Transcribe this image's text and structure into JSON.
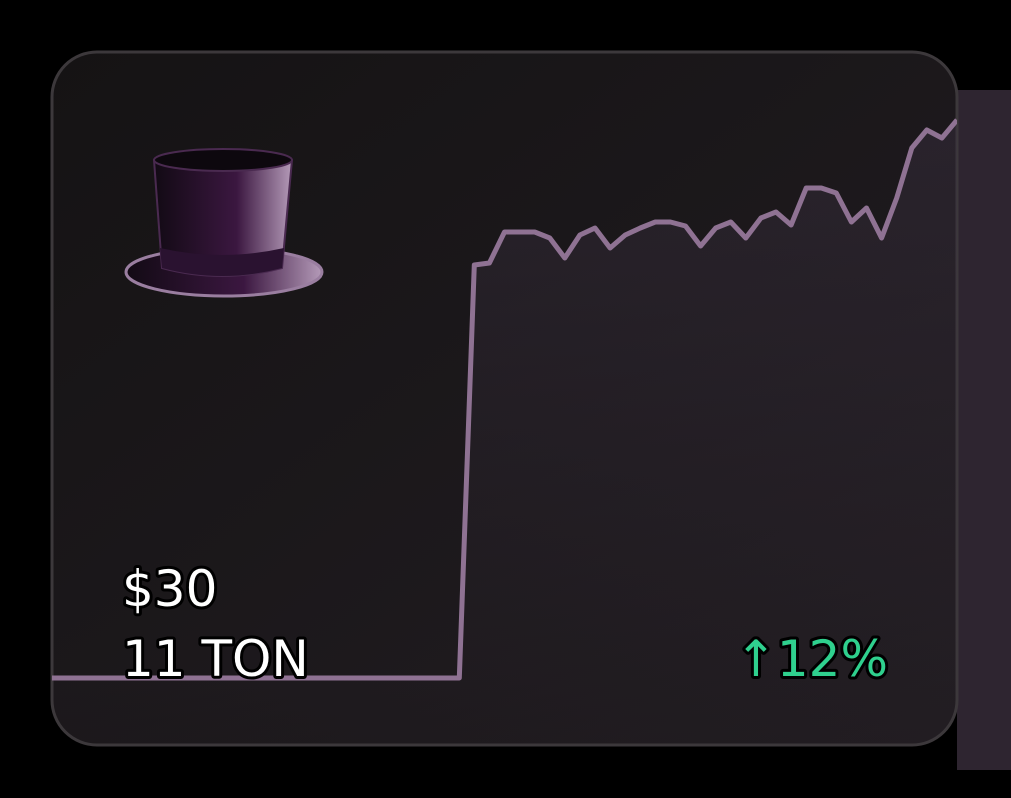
{
  "price": "$30",
  "amount": "11 TON",
  "change": "↑12%",
  "chart_data": {
    "type": "line",
    "color": "#8f7293",
    "values": [
      0,
      0,
      0,
      0,
      0,
      0,
      0,
      0,
      0,
      0,
      0,
      0,
      0,
      0,
      0,
      0,
      0,
      0,
      0,
      0,
      0,
      0,
      0,
      0,
      0,
      0,
      0,
      0,
      413,
      415,
      446,
      446,
      446,
      440,
      420,
      443,
      450,
      430,
      443,
      450,
      456,
      456,
      452,
      432,
      450,
      456,
      440,
      460,
      466,
      453,
      490,
      490,
      485,
      456,
      470,
      440,
      480,
      530,
      548,
      540,
      558
    ]
  }
}
